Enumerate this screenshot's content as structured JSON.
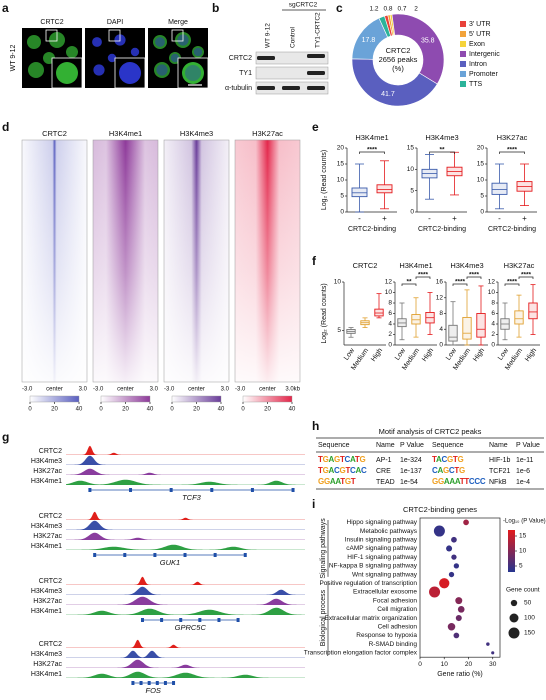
{
  "panel_labels": [
    "a",
    "b",
    "c",
    "d",
    "e",
    "f",
    "g",
    "h",
    "i"
  ],
  "panel_a": {
    "channels": [
      "CRTC2",
      "DAPI",
      "Merge"
    ],
    "sample": "WT 9-12"
  },
  "panel_b": {
    "group": "sgCRTC2",
    "lanes": [
      "WT 9-12",
      "Control",
      "TY1-CRTC2"
    ],
    "rows": [
      "CRTC2",
      "TY1",
      "α-tubulin"
    ]
  },
  "panel_d": {
    "tracks": [
      {
        "name": "CRTC2",
        "color": "#5a5fc0"
      },
      {
        "name": "H3K4me1",
        "color": "#8e3a9a"
      },
      {
        "name": "H3K4me3",
        "color": "#6a3d9a"
      },
      {
        "name": "H3K27ac",
        "color": "#e3264a"
      }
    ],
    "x_labels": [
      "-3.0",
      "center",
      "3.0"
    ],
    "x_end_label": "3.0kb",
    "colorbar_ticks": [
      0,
      20,
      40
    ]
  },
  "panel_g": {
    "loci": [
      {
        "gene": "TCF3",
        "tracks": [
          "CRTC2",
          "H3K4me3",
          "H3K27ac",
          "H3K4me1"
        ]
      },
      {
        "gene": "GUK1",
        "tracks": [
          "CRTC2",
          "H3K4me3",
          "H3K27ac",
          "H3K4me1"
        ]
      },
      {
        "gene": "GPRC5C",
        "tracks": [
          "CRTC2",
          "H3K4me3",
          "H3K27ac",
          "H3K4me1"
        ]
      },
      {
        "gene": "FOS",
        "tracks": [
          "CRTC2",
          "H3K4me3",
          "H3K27ac",
          "H3K4me1"
        ]
      }
    ]
  },
  "panel_h": {
    "title": "Motif analysis of CRTC2 peaks",
    "headers": [
      "Sequence",
      "Name",
      "P Value",
      "Sequence",
      "Name",
      "P Value"
    ],
    "rows": [
      [
        "TGAGTCATG",
        "AP-1",
        "1e-324",
        "TACGTG",
        "HIF-1b",
        "1e-11"
      ],
      [
        "TGACGTCAC",
        "CRE",
        "1e-137",
        "CAGCTG",
        "TCF21",
        "1e-6"
      ],
      [
        "GGAATGT",
        "TEAD",
        "1e-54",
        "GGAAATTCCC",
        "NFkB",
        "1e-4"
      ]
    ]
  },
  "chart_data": [
    {
      "type": "pie",
      "center_text": [
        "CRTC2",
        "2656 peaks",
        "(%)"
      ],
      "categories": [
        "3' UTR",
        "5' UTR",
        "Exon",
        "Intergenic",
        "Intron",
        "Promoter",
        "TTS"
      ],
      "values": [
        1.2,
        0.8,
        0.7,
        35.8,
        41.7,
        17.8,
        2.0
      ],
      "colors": [
        "#e8413a",
        "#f2a33a",
        "#f5d33b",
        "#8e4bb0",
        "#5a5fbf",
        "#6aa3d8",
        "#2bb39a"
      ]
    },
    {
      "type": "box",
      "ylabel": "Log₂ (Read counts)",
      "colors": [
        "#3a5bab",
        "#e41a1c"
      ],
      "panels": [
        {
          "title": "H3K4me1",
          "categories": [
            "-",
            "+"
          ],
          "xlabel": "CRTC2-binding",
          "ylim": [
            0,
            20
          ],
          "yticks": [
            0,
            5,
            10,
            15,
            20
          ],
          "boxes": [
            {
              "whislo": 0,
              "q1": 4.8,
              "med": 6,
              "q3": 7.5,
              "whishi": 15
            },
            {
              "whislo": 1,
              "q1": 6,
              "med": 7,
              "q3": 8.5,
              "whishi": 16
            }
          ],
          "significance": [
            {
              "pair": [
                0,
                1
              ],
              "label": "****"
            }
          ]
        },
        {
          "title": "H3K4me3",
          "categories": [
            "-",
            "+"
          ],
          "xlabel": "CRTC2-binding",
          "ylim": [
            0,
            15
          ],
          "yticks": [
            0,
            5,
            10,
            15
          ],
          "boxes": [
            {
              "whislo": 3,
              "q1": 8,
              "med": 9,
              "q3": 10,
              "whishi": 13.5
            },
            {
              "whislo": 4,
              "q1": 8.5,
              "med": 9.5,
              "q3": 10.5,
              "whishi": 14
            }
          ],
          "significance": [
            {
              "pair": [
                0,
                1
              ],
              "label": "**"
            }
          ]
        },
        {
          "title": "H3K27ac",
          "categories": [
            "-",
            "+"
          ],
          "xlabel": "CRTC2-binding",
          "ylim": [
            0,
            20
          ],
          "yticks": [
            0,
            5,
            10,
            15,
            20
          ],
          "boxes": [
            {
              "whislo": 1,
              "q1": 5.5,
              "med": 7,
              "q3": 9,
              "whishi": 15
            },
            {
              "whislo": 2,
              "q1": 6.5,
              "med": 8,
              "q3": 9.5,
              "whishi": 15
            }
          ],
          "significance": [
            {
              "pair": [
                0,
                1
              ],
              "label": "****"
            }
          ]
        }
      ]
    },
    {
      "type": "box",
      "ylabel": "Log₂ (Read counts)",
      "colors": [
        "#777777",
        "#e0a030",
        "#e41a1c"
      ],
      "panels": [
        {
          "title": "CRTC2",
          "categories": [
            "Low",
            "Medium",
            "High"
          ],
          "ylim": [
            3.5,
            10
          ],
          "yticks": [
            5,
            10
          ],
          "boxes": [
            {
              "whislo": 4.3,
              "q1": 4.7,
              "med": 4.9,
              "q3": 5.1,
              "whishi": 5.3
            },
            {
              "whislo": 5.3,
              "q1": 5.6,
              "med": 5.8,
              "q3": 6.0,
              "whishi": 6.3
            },
            {
              "whislo": 6.3,
              "q1": 6.5,
              "med": 6.8,
              "q3": 7.2,
              "whishi": 8.8
            }
          ],
          "significance": []
        },
        {
          "title": "H3K4me1",
          "categories": [
            "Low",
            "Medium",
            "High"
          ],
          "ylim": [
            0,
            12
          ],
          "yticks": [
            0,
            2,
            4,
            6,
            8,
            10,
            12
          ],
          "boxes": [
            {
              "whislo": 1,
              "q1": 3.5,
              "med": 4.2,
              "q3": 5,
              "whishi": 8
            },
            {
              "whislo": 1.5,
              "q1": 4,
              "med": 4.8,
              "q3": 5.8,
              "whishi": 9
            },
            {
              "whislo": 2,
              "q1": 4.2,
              "med": 5.2,
              "q3": 6.2,
              "whishi": 10
            }
          ],
          "significance": [
            {
              "pair": [
                0,
                1
              ],
              "label": "**"
            },
            {
              "pair": [
                1,
                2
              ],
              "label": "****"
            }
          ]
        },
        {
          "title": "H3K4me3",
          "categories": [
            "Low",
            "Medium",
            "High"
          ],
          "ylim": [
            0,
            16
          ],
          "yticks": [
            0,
            4,
            8,
            12,
            16
          ],
          "boxes": [
            {
              "whislo": 0,
              "q1": 1,
              "med": 2,
              "q3": 5,
              "whishi": 11
            },
            {
              "whislo": 0,
              "q1": 1.5,
              "med": 3,
              "q3": 7,
              "whishi": 14
            },
            {
              "whislo": 0,
              "q1": 2,
              "med": 4,
              "q3": 8,
              "whishi": 15
            }
          ],
          "significance": [
            {
              "pair": [
                0,
                1
              ],
              "label": "****"
            },
            {
              "pair": [
                1,
                2
              ],
              "label": "****"
            }
          ]
        },
        {
          "title": "H3K27ac",
          "categories": [
            "Low",
            "Medium",
            "High"
          ],
          "ylim": [
            0,
            12
          ],
          "yticks": [
            0,
            2,
            4,
            6,
            8,
            10,
            12
          ],
          "boxes": [
            {
              "whislo": 1,
              "q1": 3,
              "med": 4,
              "q3": 5,
              "whishi": 8
            },
            {
              "whislo": 1.5,
              "q1": 4,
              "med": 5,
              "q3": 6.5,
              "whishi": 9.5
            },
            {
              "whislo": 2,
              "q1": 5,
              "med": 6.3,
              "q3": 8,
              "whishi": 11.5
            }
          ],
          "significance": [
            {
              "pair": [
                0,
                1
              ],
              "label": "****"
            },
            {
              "pair": [
                1,
                2
              ],
              "label": "****"
            }
          ]
        }
      ]
    },
    {
      "type": "dot",
      "title": "CRTC2-binding genes",
      "xlabel": "Gene ratio (%)",
      "xlim": [
        0,
        33
      ],
      "xticks": [
        0,
        10,
        20,
        30
      ],
      "groups": [
        {
          "label": "Signaling pathways",
          "categories": [
            "Hippo signaling pathway",
            "Metabolic pathways",
            "Insulin signaling pathway",
            "cAMP signaling pathway",
            "HIF-1 signaling pathway",
            "NF-kappa B signaling pathway",
            "Wnt signaling pathway"
          ],
          "x": [
            19,
            8,
            14,
            12,
            14,
            15,
            13
          ],
          "color_value": [
            12,
            4,
            5,
            4,
            5,
            4,
            4
          ],
          "size": [
            40,
            150,
            40,
            45,
            35,
            35,
            35
          ]
        },
        {
          "label": "Biological process",
          "categories": [
            "Positive regulation of transcription",
            "Extracellular exosome",
            "Focal adhesion",
            "Cell migration",
            "Extracellular matrix organization",
            "Cell adhesion",
            "Response to hypoxia",
            "R-SMAD binding",
            "Transcription elongation factor complex"
          ],
          "x": [
            10,
            6,
            16,
            17,
            16,
            13,
            15,
            28,
            30
          ],
          "color_value": [
            16,
            14,
            10,
            9,
            8,
            9,
            6,
            5,
            5
          ],
          "size": [
            130,
            150,
            60,
            55,
            45,
            70,
            40,
            15,
            12
          ]
        }
      ],
      "colorbar": {
        "label": "-Log₁₀ (P Value)",
        "lim": [
          3,
          17
        ],
        "ticks": [
          5,
          10,
          15
        ],
        "colors": [
          "#26358f",
          "#e31a1c"
        ]
      },
      "size_legend": {
        "label": "Gene count",
        "ticks": [
          50,
          100,
          150
        ]
      }
    }
  ]
}
